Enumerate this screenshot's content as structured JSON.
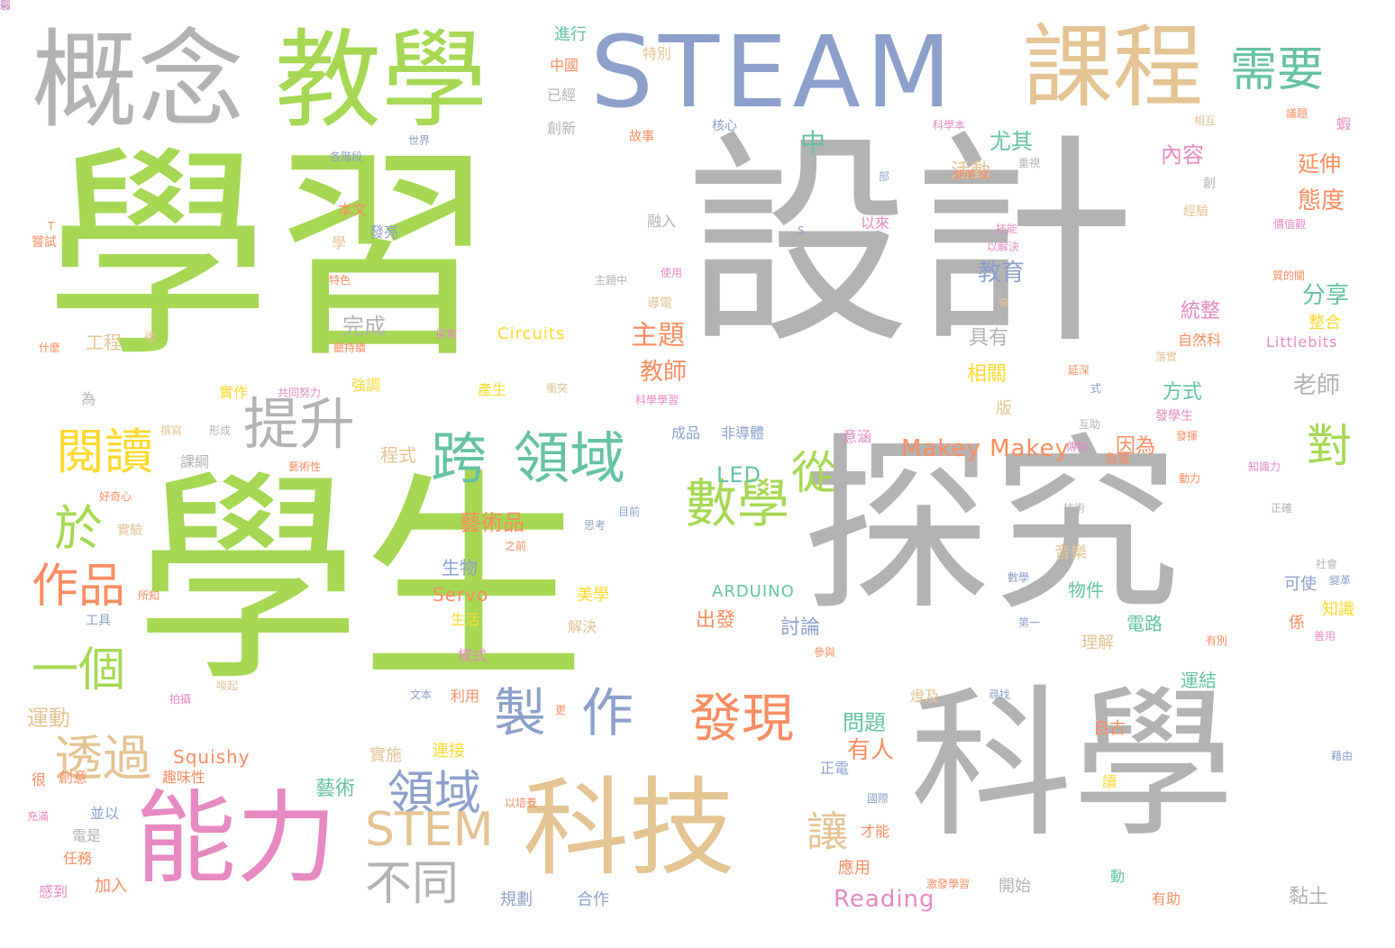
{
  "palette": {
    "green": "#a6d854",
    "gray": "#b3b3b3",
    "blue": "#8da0cb",
    "tan": "#e5c494",
    "pink": "#e78ac3",
    "orange": "#fc8d62",
    "teal": "#66c2a5",
    "yellow": "#ffd92f"
  },
  "words": [
    {
      "text": "學習",
      "color": "green",
      "size": 250
    },
    {
      "text": "設計",
      "color": "gray",
      "size": 250
    },
    {
      "text": "學生",
      "color": "green",
      "size": 250
    },
    {
      "text": "探究",
      "color": "gray",
      "size": 210
    },
    {
      "text": "科學",
      "color": "gray",
      "size": 180
    },
    {
      "text": "概念",
      "color": "gray",
      "size": 118
    },
    {
      "text": "教學",
      "color": "green",
      "size": 118
    },
    {
      "text": "STEAM",
      "color": "blue",
      "size": 110
    },
    {
      "text": "課程",
      "color": "tan",
      "size": 100
    },
    {
      "text": "科技",
      "color": "tan",
      "size": 118
    },
    {
      "text": "能力",
      "color": "pink",
      "size": 112
    },
    {
      "text": "需要",
      "color": "teal",
      "size": 52
    },
    {
      "text": "跨",
      "color": "teal",
      "size": 62
    },
    {
      "text": "領域",
      "color": "teal",
      "size": 62
    },
    {
      "text": "提升",
      "color": "gray",
      "size": 62
    },
    {
      "text": "閱讀",
      "color": "yellow",
      "size": 54
    },
    {
      "text": "數學",
      "color": "green",
      "size": 58
    },
    {
      "text": "發現",
      "color": "orange",
      "size": 58
    },
    {
      "text": "製",
      "color": "blue",
      "size": 58
    },
    {
      "text": "作",
      "color": "blue",
      "size": 58
    },
    {
      "text": "從",
      "color": "green",
      "size": 50
    },
    {
      "text": "對",
      "color": "green",
      "size": 50
    },
    {
      "text": "於",
      "color": "green",
      "size": 54
    },
    {
      "text": "作品",
      "color": "orange",
      "size": 52
    },
    {
      "text": "一個",
      "color": "green",
      "size": 52
    },
    {
      "text": "透過",
      "color": "tan",
      "size": 54
    },
    {
      "text": "領域",
      "color": "blue",
      "size": 52
    },
    {
      "text": "STEM",
      "color": "tan",
      "size": 52
    },
    {
      "text": "不同",
      "color": "gray",
      "size": 52
    },
    {
      "text": "讓",
      "color": "tan",
      "size": 46
    },
    {
      "text": "Makey Makey",
      "color": "orange",
      "size": 26
    },
    {
      "text": "Reading",
      "color": "pink",
      "size": 26
    },
    {
      "text": "Squishy",
      "color": "orange",
      "size": 20
    },
    {
      "text": "Circuits",
      "color": "yellow",
      "size": 18
    },
    {
      "text": "Servo",
      "color": "orange",
      "size": 20
    },
    {
      "text": "ARDUINO",
      "color": "teal",
      "size": 18
    },
    {
      "text": "LED",
      "color": "teal",
      "size": 24
    },
    {
      "text": "Littlebits",
      "color": "pink",
      "size": 16
    },
    {
      "text": "藝術品",
      "color": "orange",
      "size": 24
    },
    {
      "text": "主題",
      "color": "orange",
      "size": 30
    },
    {
      "text": "教師",
      "color": "orange",
      "size": 26
    },
    {
      "text": "教育",
      "color": "blue",
      "size": 26
    },
    {
      "text": "內容",
      "color": "pink",
      "size": 24
    },
    {
      "text": "延伸",
      "color": "orange",
      "size": 24
    },
    {
      "text": "態度",
      "color": "orange",
      "size": 26
    },
    {
      "text": "分享",
      "color": "teal",
      "size": 26
    },
    {
      "text": "統整",
      "color": "pink",
      "size": 22
    },
    {
      "text": "老師",
      "color": "gray",
      "size": 26
    },
    {
      "text": "方式",
      "color": "teal",
      "size": 22
    },
    {
      "text": "具有",
      "color": "gray",
      "size": 22
    },
    {
      "text": "相關",
      "color": "yellow",
      "size": 22
    },
    {
      "text": "中",
      "color": "teal",
      "size": 28
    },
    {
      "text": "尤其",
      "color": "teal",
      "size": 24
    },
    {
      "text": "活動",
      "color": "tan",
      "size": 22
    },
    {
      "text": "完成",
      "color": "gray",
      "size": 24
    },
    {
      "text": "工程",
      "color": "tan",
      "size": 20
    },
    {
      "text": "生物",
      "color": "blue",
      "size": 20
    },
    {
      "text": "美學",
      "color": "yellow",
      "size": 18
    },
    {
      "text": "出發",
      "color": "orange",
      "size": 22
    },
    {
      "text": "討論",
      "color": "blue",
      "size": 22
    },
    {
      "text": "電路",
      "color": "teal",
      "size": 20
    },
    {
      "text": "物件",
      "color": "teal",
      "size": 20
    },
    {
      "text": "運結",
      "color": "teal",
      "size": 20
    },
    {
      "text": "問題",
      "color": "teal",
      "size": 24
    },
    {
      "text": "有人",
      "color": "orange",
      "size": 26
    },
    {
      "text": "運動",
      "color": "tan",
      "size": 24
    },
    {
      "text": "藝術",
      "color": "teal",
      "size": 22
    },
    {
      "text": "實施",
      "color": "tan",
      "size": 18
    },
    {
      "text": "連接",
      "color": "yellow",
      "size": 18
    },
    {
      "text": "開始",
      "color": "gray",
      "size": 18
    },
    {
      "text": "黏土",
      "color": "gray",
      "size": 22
    },
    {
      "text": "音樂",
      "color": "tan",
      "size": 18
    },
    {
      "text": "理解",
      "color": "tan",
      "size": 18
    },
    {
      "text": "知識",
      "color": "yellow",
      "size": 18
    },
    {
      "text": "可使",
      "color": "blue",
      "size": 18
    },
    {
      "text": "應用",
      "color": "orange",
      "size": 18
    },
    {
      "text": "規劃",
      "color": "blue",
      "size": 18
    },
    {
      "text": "合作",
      "color": "blue",
      "size": 18
    },
    {
      "text": "加入",
      "color": "orange",
      "size": 18
    },
    {
      "text": "感到",
      "color": "pink",
      "size": 16
    },
    {
      "text": "任務",
      "color": "orange",
      "size": 16
    },
    {
      "text": "電是",
      "color": "gray",
      "size": 16
    },
    {
      "text": "並以",
      "color": "blue",
      "size": 16
    },
    {
      "text": "趣味性",
      "color": "orange",
      "size": 16
    },
    {
      "text": "創意",
      "color": "orange",
      "size": 16
    },
    {
      "text": "很",
      "color": "orange",
      "size": 16
    },
    {
      "text": "為",
      "color": "gray",
      "size": 16
    },
    {
      "text": "課綱",
      "color": "gray",
      "size": 16
    },
    {
      "text": "程式",
      "color": "tan",
      "size": 20
    },
    {
      "text": "實作",
      "color": "yellow",
      "size": 16
    },
    {
      "text": "強調",
      "color": "yellow",
      "size": 16
    },
    {
      "text": "產生",
      "color": "yellow",
      "size": 16
    },
    {
      "text": "成品",
      "color": "blue",
      "size": 16
    },
    {
      "text": "非導體",
      "color": "blue",
      "size": 16
    },
    {
      "text": "意涵",
      "color": "pink",
      "size": 16
    },
    {
      "text": "因為",
      "color": "orange",
      "size": 22
    },
    {
      "text": "版",
      "color": "tan",
      "size": 18
    },
    {
      "text": "發學生",
      "color": "pink",
      "size": 14
    },
    {
      "text": "自然科",
      "color": "orange",
      "size": 16
    },
    {
      "text": "整合",
      "color": "yellow",
      "size": 18
    },
    {
      "text": "進行",
      "color": "teal",
      "size": 18
    },
    {
      "text": "中國",
      "color": "orange",
      "size": 16
    },
    {
      "text": "已經",
      "color": "gray",
      "size": 16
    },
    {
      "text": "創新",
      "color": "gray",
      "size": 16
    },
    {
      "text": "特別",
      "color": "tan",
      "size": 16
    },
    {
      "text": "故事",
      "color": "orange",
      "size": 14
    },
    {
      "text": "核心",
      "color": "blue",
      "size": 14
    },
    {
      "text": "世界",
      "color": "blue",
      "size": 12
    },
    {
      "text": "本文",
      "color": "orange",
      "size": 16
    },
    {
      "text": "發亮",
      "color": "blue",
      "size": 16
    },
    {
      "text": "學",
      "color": "tan",
      "size": 16
    },
    {
      "text": "融入",
      "color": "gray",
      "size": 16
    },
    {
      "text": "以來",
      "color": "pink",
      "size": 16
    },
    {
      "text": "嘗試",
      "color": "orange",
      "size": 14
    },
    {
      "text": "使用",
      "color": "pink",
      "size": 12
    },
    {
      "text": "導電",
      "color": "tan",
      "size": 14
    },
    {
      "text": "後",
      "color": "tan",
      "size": 14
    },
    {
      "text": "工具",
      "color": "blue",
      "size": 14
    },
    {
      "text": "實驗",
      "color": "tan",
      "size": 14
    },
    {
      "text": "好奇心",
      "color": "orange",
      "size": 12
    },
    {
      "text": "生活",
      "color": "yellow",
      "size": 16
    },
    {
      "text": "模式",
      "color": "pink",
      "size": 16
    },
    {
      "text": "利用",
      "color": "orange",
      "size": 16
    },
    {
      "text": "解決",
      "color": "tan",
      "size": 16
    },
    {
      "text": "燈及",
      "color": "tan",
      "size": 16
    },
    {
      "text": "自古",
      "color": "orange",
      "size": 18
    },
    {
      "text": "正電",
      "color": "blue",
      "size": 16
    },
    {
      "text": "才能",
      "color": "orange",
      "size": 16
    },
    {
      "text": "經驗",
      "color": "tan",
      "size": 14
    },
    {
      "text": "相互",
      "color": "tan",
      "size": 12
    },
    {
      "text": "議題",
      "color": "orange",
      "size": 12
    },
    {
      "text": "科學本",
      "color": "pink",
      "size": 12
    },
    {
      "text": "負電",
      "color": "orange",
      "size": 14
    },
    {
      "text": "有助",
      "color": "orange",
      "size": 16
    },
    {
      "text": "動",
      "color": "teal",
      "size": 16
    },
    {
      "text": "讀",
      "color": "yellow",
      "size": 16
    },
    {
      "text": "係",
      "color": "orange",
      "size": 18
    },
    {
      "text": "文本",
      "color": "blue",
      "size": 12
    },
    {
      "text": "更",
      "color": "orange",
      "size": 12
    },
    {
      "text": "第一",
      "color": "blue",
      "size": 12
    },
    {
      "text": "參與",
      "color": "orange",
      "size": 12
    },
    {
      "text": "尋找",
      "color": "blue",
      "size": 12
    },
    {
      "text": "社會",
      "color": "gray",
      "size": 12
    },
    {
      "text": "變革",
      "color": "blue",
      "size": 12
    },
    {
      "text": "有別",
      "color": "orange",
      "size": 12
    },
    {
      "text": "藉由",
      "color": "blue",
      "size": 12
    },
    {
      "text": "正確",
      "color": "gray",
      "size": 12
    },
    {
      "text": "技術",
      "color": "gray",
      "size": 12
    },
    {
      "text": "目前",
      "color": "blue",
      "size": 12
    },
    {
      "text": "思考",
      "color": "blue",
      "size": 12
    },
    {
      "text": "之前",
      "color": "orange",
      "size": 12
    },
    {
      "text": "所知",
      "color": "orange",
      "size": 12
    },
    {
      "text": "形成",
      "color": "gray",
      "size": 12
    },
    {
      "text": "共同努力",
      "color": "pink",
      "size": 12
    },
    {
      "text": "什麼",
      "color": "orange",
      "size": 12
    },
    {
      "text": "特色",
      "color": "orange",
      "size": 12
    },
    {
      "text": "探索",
      "color": "pink",
      "size": 12
    },
    {
      "text": "來",
      "color": "tan",
      "size": 12
    },
    {
      "text": "式",
      "color": "blue",
      "size": 12
    },
    {
      "text": "部",
      "color": "blue",
      "size": 12
    },
    {
      "text": "S",
      "color": "blue",
      "size": 12
    },
    {
      "text": "T",
      "color": "orange",
      "size": 12
    },
    {
      "text": "蝦",
      "color": "pink",
      "size": 16
    },
    {
      "text": "創",
      "color": "gray",
      "size": 14
    },
    {
      "text": "技能",
      "color": "pink",
      "size": 12
    },
    {
      "text": "以解決",
      "color": "pink",
      "size": 12
    },
    {
      "text": "重視",
      "color": "gray",
      "size": 12
    },
    {
      "text": "發揮",
      "color": "orange",
      "size": 12
    },
    {
      "text": "知識力",
      "color": "pink",
      "size": 12
    },
    {
      "text": "各階段",
      "color": "blue",
      "size": 12
    },
    {
      "text": "國際",
      "color": "blue",
      "size": 12
    },
    {
      "text": "以培養",
      "color": "orange",
      "size": 12
    },
    {
      "text": "充滿",
      "color": "pink",
      "size": 12
    },
    {
      "text": "聽持續",
      "color": "orange",
      "size": 12
    },
    {
      "text": "撰寫",
      "color": "tan",
      "size": 12
    },
    {
      "text": "喚起",
      "color": "tan",
      "size": 12
    },
    {
      "text": "拍攝",
      "color": "pink",
      "size": 12
    },
    {
      "text": "藝術性",
      "color": "orange",
      "size": 12
    },
    {
      "text": "科學學習",
      "color": "pink",
      "size": 12
    },
    {
      "text": "使用 成",
      "color": "orange",
      "size": 12
    },
    {
      "text": "激發學習",
      "color": "orange",
      "size": 12
    },
    {
      "text": "善用",
      "color": "pink",
      "size": 12
    },
    {
      "text": "價值觀",
      "color": "pink",
      "size": 12
    },
    {
      "text": "動力",
      "color": "orange",
      "size": 12
    },
    {
      "text": "延深",
      "color": "orange",
      "size": 12
    },
    {
      "text": "落實",
      "color": "tan",
      "size": 12
    },
    {
      "text": "互助",
      "color": "gray",
      "size": 12
    },
    {
      "text": "數學",
      "color": "blue",
      "size": 12
    },
    {
      "text": "衝突",
      "color": "tan",
      "size": 12
    },
    {
      "text": "傳授",
      "color": "pink",
      "size": 12
    },
    {
      "text": "質的關",
      "color": "orange",
      "size": 12
    },
    {
      "text": "主題中",
      "color": "gray",
      "size": 12
    },
    {
      "text": "彩",
      "color": "blue",
      "size": 12
    },
    {
      "text": "裝",
      "color": "pink",
      "size": 12
    }
  ]
}
